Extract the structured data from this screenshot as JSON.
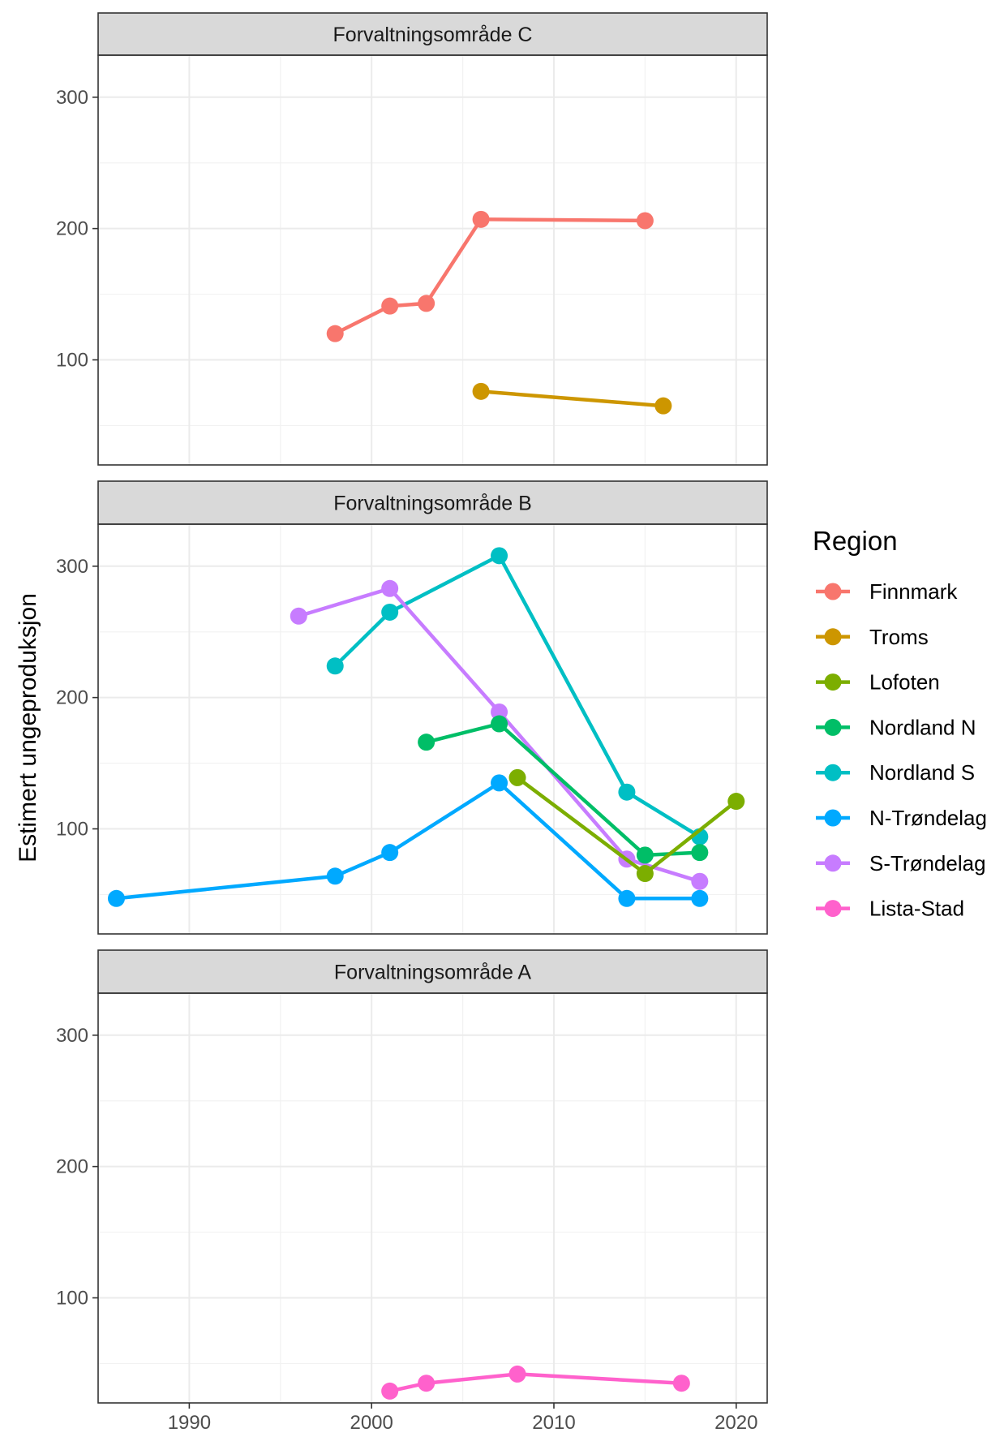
{
  "chart_data": {
    "type": "line",
    "ylabel": "Estimert ungeproduksjon",
    "xlabel": "",
    "xlim": [
      1985,
      2021.7
    ],
    "ylim": [
      20,
      332
    ],
    "x_ticks": [
      1990,
      2000,
      2010,
      2020
    ],
    "y_ticks": [
      100,
      200,
      300
    ],
    "grid": true,
    "legend": {
      "title": "Region",
      "placement": "right",
      "entries": [
        "Finnmark",
        "Troms",
        "Lofoten",
        "Nordland N",
        "Nordland S",
        "N-Trøndelag",
        "S-Trøndelag",
        "Lista-Stad"
      ]
    },
    "panels": [
      {
        "strip": "Forvaltningsområde C",
        "series": [
          {
            "name": "Finnmark",
            "color": "#F8766D",
            "points": [
              [
                1998,
                120
              ],
              [
                2001,
                141
              ],
              [
                2003,
                143
              ],
              [
                2006,
                207
              ],
              [
                2015,
                206
              ]
            ]
          },
          {
            "name": "Troms",
            "color": "#CD9600",
            "points": [
              [
                2006,
                76
              ],
              [
                2016,
                65
              ]
            ]
          }
        ]
      },
      {
        "strip": "Forvaltningsområde B",
        "series": [
          {
            "name": "Nordland S",
            "color": "#00BFC4",
            "points": [
              [
                1998,
                224
              ],
              [
                2001,
                265
              ],
              [
                2007,
                308
              ],
              [
                2014,
                128
              ],
              [
                2018,
                94
              ]
            ]
          },
          {
            "name": "S-Trøndelag",
            "color": "#C77CFF",
            "points": [
              [
                1996,
                262
              ],
              [
                2001,
                283
              ],
              [
                2007,
                189
              ],
              [
                2014,
                77
              ],
              [
                2018,
                60
              ]
            ]
          },
          {
            "name": "Nordland N",
            "color": "#00BE67",
            "points": [
              [
                2003,
                166
              ],
              [
                2007,
                180
              ],
              [
                2015,
                80
              ],
              [
                2018,
                82
              ]
            ]
          },
          {
            "name": "Lofoten",
            "color": "#7CAE00",
            "points": [
              [
                2008,
                139
              ],
              [
                2015,
                66
              ],
              [
                2020,
                121
              ]
            ]
          },
          {
            "name": "N-Trøndelag",
            "color": "#00A9FF",
            "points": [
              [
                1986,
                47
              ],
              [
                1998,
                64
              ],
              [
                2001,
                82
              ],
              [
                2007,
                135
              ],
              [
                2014,
                47
              ],
              [
                2018,
                47
              ]
            ]
          }
        ]
      },
      {
        "strip": "Forvaltningsområde A",
        "series": [
          {
            "name": "Lista-Stad",
            "color": "#FF61CC",
            "points": [
              [
                2001,
                29
              ],
              [
                2003,
                35
              ],
              [
                2008,
                42
              ],
              [
                2017,
                35
              ]
            ]
          }
        ]
      }
    ]
  }
}
